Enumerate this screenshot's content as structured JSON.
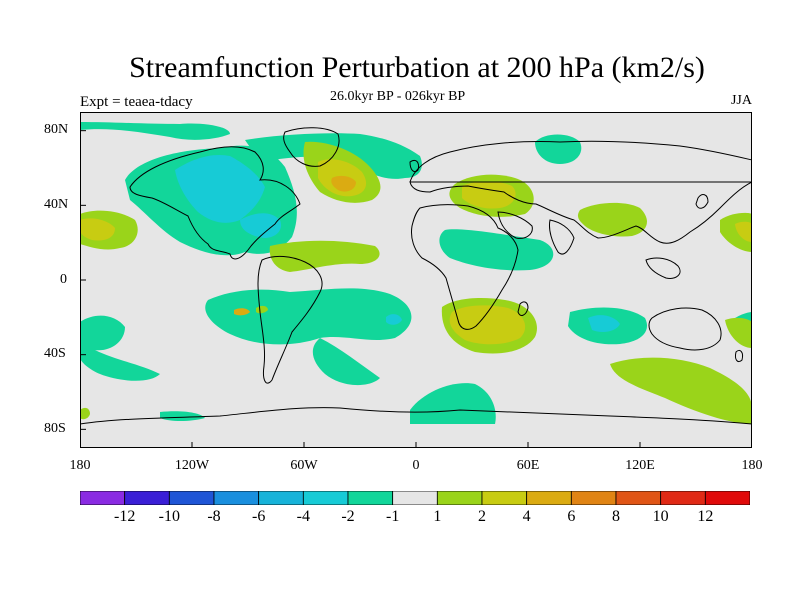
{
  "title": "Streamfunction Perturbation at 200 hPa (km2/s)",
  "experiment_label": "Expt = teaea-tdacy",
  "time_label": "26.0kyr BP - 026kyr BP",
  "season": "JJA",
  "map": {
    "projection": "cylindrical-equidistant",
    "lon_range": [
      -180,
      180
    ],
    "lat_range": [
      -90,
      90
    ],
    "background_color": "#e6e6e6",
    "lat_ticks": [
      "80N",
      "40N",
      "0",
      "40S",
      "80S"
    ],
    "lat_values": [
      80,
      40,
      0,
      -40,
      -80
    ],
    "lon_ticks": [
      "180",
      "120W",
      "60W",
      "0",
      "60E",
      "120E",
      "180"
    ],
    "lon_values": [
      -180,
      -120,
      -60,
      0,
      60,
      120,
      180
    ]
  },
  "colorbar": {
    "labels": [
      "-12",
      "-10",
      "-8",
      "-6",
      "-4",
      "-2",
      "-1",
      "1",
      "2",
      "4",
      "6",
      "8",
      "10",
      "12"
    ],
    "colors": [
      "#8a2be2",
      "#3a1fd6",
      "#1f55d6",
      "#1a8fde",
      "#17b3d9",
      "#17cbd6",
      "#12d69a",
      "#e6e6e6",
      "#9ad41a",
      "#c8cc12",
      "#dbab12",
      "#e08414",
      "#e05516",
      "#e02a16",
      "#e00a0a"
    ]
  },
  "level_colors": {
    "-3": "#17b3d9",
    "-2": "#17cbd6",
    "-1": "#12d69a",
    "1": "#9ad41a",
    "2": "#c8cc12",
    "3": "#dbab12"
  }
}
